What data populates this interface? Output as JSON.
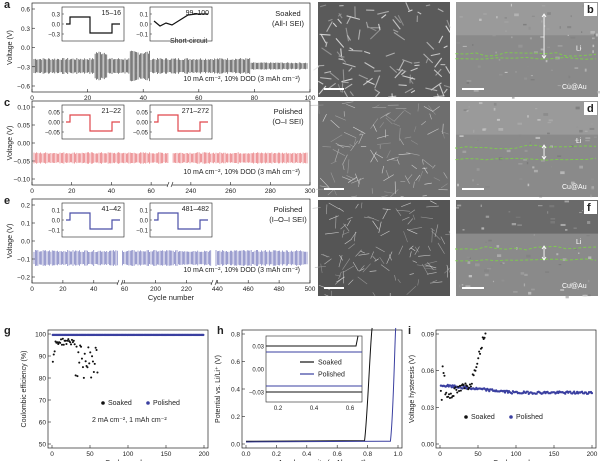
{
  "panels": {
    "a": {
      "label": "a",
      "ylabel": "Voltage (V)",
      "sample": [
        "Soaked",
        "(All-I SEI)"
      ],
      "condition": "10 mA cm⁻², 10% DOD (3 mAh cm⁻²)",
      "inset1": {
        "title": "15–16",
        "ticks": [
          "0.3",
          "0.0",
          "−0.3"
        ]
      },
      "inset2": {
        "title": "99–100",
        "ticks": [
          "0.1",
          "0.0",
          "−0.1"
        ],
        "annotation": "Short-circuit"
      },
      "yticks": [
        "0.6",
        "0.3",
        "0.0",
        "−0.3",
        "−0.6"
      ],
      "xticks": [
        "0",
        "20",
        "40",
        "60",
        "80",
        "100"
      ]
    },
    "b": {
      "label": "b",
      "layers": [
        "Li",
        "Cu@Au"
      ]
    },
    "c": {
      "label": "c",
      "ylabel": "Voltage (V)",
      "sample": [
        "Polished",
        "(O–I SEI)"
      ],
      "condition": "10 mA cm⁻², 10% DOD (3 mAh cm⁻²)",
      "inset1": {
        "title": "21–22",
        "ticks": [
          "0.05",
          "0.00",
          "−0.05"
        ]
      },
      "inset2": {
        "title": "271–272",
        "ticks": [
          "0.05",
          "0.00",
          "−0.05"
        ]
      },
      "yticks": [
        "0.10",
        "0.05",
        "0.00",
        "−0.05",
        "−0.10"
      ],
      "xticks": [
        "0",
        "20",
        "40",
        "60",
        "240",
        "260",
        "280",
        "300"
      ]
    },
    "d": {
      "label": "d",
      "layers": [
        "Li",
        "Cu@Au"
      ]
    },
    "e": {
      "label": "e",
      "ylabel": "Voltage (V)",
      "sample": [
        "Polished",
        "(I–O–I SEI)"
      ],
      "condition": "10 mA cm⁻², 10% DOD (3 mAh cm⁻²)",
      "inset1": {
        "title": "41–42",
        "ticks": [
          "0.1",
          "0.0",
          "−0.1"
        ]
      },
      "inset2": {
        "title": "481–482",
        "ticks": [
          "0.1",
          "0.0",
          "−0.1"
        ]
      },
      "yticks": [
        "0.2",
        "0.1",
        "0.0",
        "−0.1",
        "−0.2"
      ],
      "xticks": [
        "0",
        "20",
        "40",
        "60",
        "200",
        "220",
        "440",
        "460",
        "480",
        "500"
      ],
      "xlabel": "Cycle number"
    },
    "f": {
      "label": "f",
      "layers": [
        "Li",
        "Cu@Au"
      ]
    },
    "g": {
      "label": "g",
      "ylabel": "Coulombic efficiency (%)",
      "xlabel": "Cycle number",
      "legend": [
        "Soaked",
        "Polished"
      ],
      "condition": "2 mA cm⁻², 1 mAh cm⁻²",
      "yticks": [
        "100",
        "90",
        "80",
        "70",
        "60",
        "50"
      ],
      "xticks": [
        "0",
        "50",
        "100",
        "150",
        "200"
      ]
    },
    "h": {
      "label": "h",
      "ylabel": "Potential vs. Li/Li⁺ (V)",
      "xlabel": "Areal capacity (mAh cm⁻²)",
      "legend": [
        "Soaked",
        "Polished"
      ],
      "yticks": [
        "0.8",
        "0.6",
        "0.4",
        "0.2",
        "0.0"
      ],
      "xticks": [
        "0.0",
        "0.2",
        "0.4",
        "0.6",
        "0.8",
        "1.0"
      ],
      "inset": {
        "yticks": [
          "0.03",
          "0.00",
          "−0.03"
        ],
        "xticks": [
          "0.2",
          "0.4",
          "0.6"
        ]
      }
    },
    "i": {
      "label": "i",
      "ylabel": "Voltage hysteresis (V)",
      "xlabel": "Cycle number",
      "legend": [
        "Soaked",
        "Polished"
      ],
      "yticks": [
        "0.09",
        "0.06",
        "0.03",
        "0.00"
      ],
      "xticks": [
        "0",
        "50",
        "100",
        "150",
        "200"
      ]
    }
  },
  "colors": {
    "soaked": "#111111",
    "polished_c": "#e0474c",
    "polished_e": "#4b4fa8",
    "polished": "#3a3fa0",
    "guide": "#7ec850"
  }
}
